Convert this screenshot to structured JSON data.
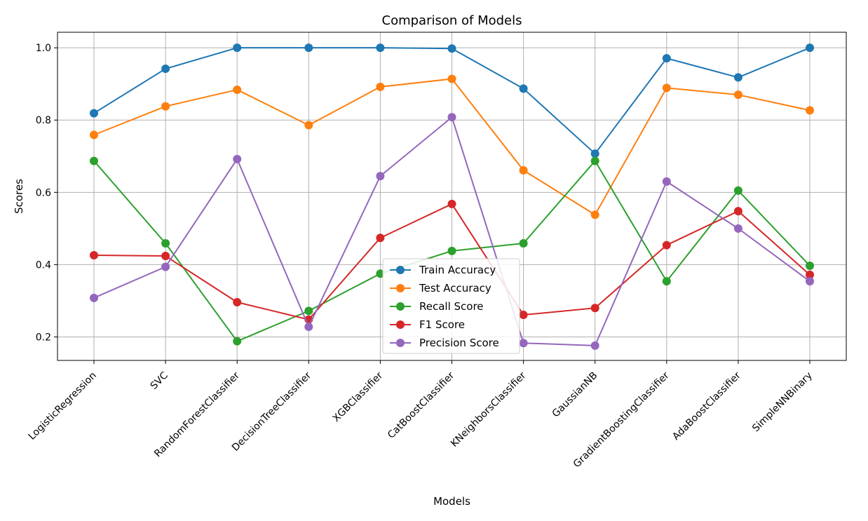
{
  "chart_data": {
    "type": "line",
    "title": "Comparison of Models",
    "xlabel": "Models",
    "ylabel": "Scores",
    "categories": [
      "LogisticRegression",
      "SVC",
      "RandomForestClassifier",
      "DecisionTreeClassifier",
      "XGBClassifier",
      "CatBoostClassifier",
      "KNeighborsClassifier",
      "GaussianNB",
      "GradientBoostingClassifier",
      "AdaBoostClassifier",
      "SimpleNNBinary"
    ],
    "ylim": [
      0.135,
      1.043
    ],
    "yticks": [
      "0.2",
      "0.4",
      "0.6",
      "0.8",
      "1.0"
    ],
    "grid": true,
    "legend_position": "lower center",
    "series": [
      {
        "name": "Train Accuracy",
        "color": "#1f77b4",
        "values": [
          0.819,
          0.942,
          1.0,
          1.0,
          1.0,
          0.998,
          0.887,
          0.707,
          0.971,
          0.918,
          1.0
        ]
      },
      {
        "name": "Test Accuracy",
        "color": "#ff7f0e",
        "values": [
          0.759,
          0.838,
          0.884,
          0.786,
          0.892,
          0.914,
          0.661,
          0.538,
          0.889,
          0.87,
          0.827
        ]
      },
      {
        "name": "Recall Score",
        "color": "#2ca02c",
        "values": [
          0.687,
          0.459,
          0.188,
          0.272,
          0.375,
          0.438,
          0.459,
          0.687,
          0.354,
          0.605,
          0.397
        ]
      },
      {
        "name": "F1 Score",
        "color": "#d62728",
        "values": [
          0.426,
          0.424,
          0.296,
          0.248,
          0.474,
          0.568,
          0.261,
          0.28,
          0.454,
          0.548,
          0.372
        ]
      },
      {
        "name": "Precision Score",
        "color": "#9467bd",
        "values": [
          0.308,
          0.394,
          0.692,
          0.228,
          0.645,
          0.808,
          0.183,
          0.176,
          0.63,
          0.5,
          0.354
        ]
      }
    ]
  }
}
